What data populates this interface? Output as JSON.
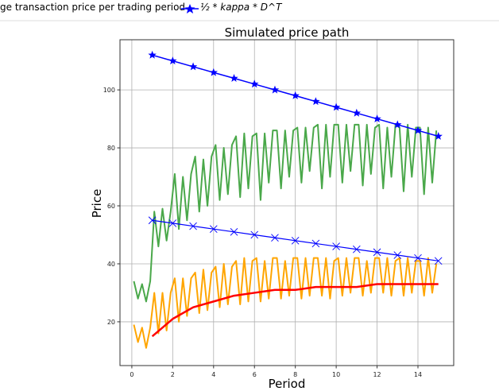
{
  "legend": {
    "entries": [
      {
        "label": "ge transaction price per trading period"
      },
      {
        "label": "½ * kappa * D^T",
        "color": "#0000ff",
        "marker": "star"
      }
    ]
  },
  "chart_data": {
    "type": "line",
    "title": "Simulated price path",
    "xlabel": "Period",
    "ylabel": "Price",
    "xlim": [
      -0.58,
      15.75
    ],
    "ylim": [
      4.9,
      117.3
    ],
    "xticks": [
      "0",
      "2",
      "4",
      "6",
      "8",
      "10",
      "12",
      "14"
    ],
    "yticks": [
      "20",
      "40",
      "60",
      "80",
      "100"
    ],
    "grid": true,
    "series": [
      {
        "name": "½ * kappa * D^T",
        "color": "#0000ff",
        "marker": "star",
        "x": [
          1,
          2,
          3,
          4,
          5,
          6,
          7,
          8,
          9,
          10,
          11,
          12,
          13,
          14,
          15
        ],
        "y": [
          112,
          110,
          108,
          106,
          104,
          102,
          100,
          98,
          96,
          94,
          92,
          90,
          88,
          86,
          84
        ]
      },
      {
        "color": "#0000ff",
        "marker": "x",
        "x": [
          1,
          2,
          3,
          4,
          5,
          6,
          7,
          8,
          9,
          10,
          11,
          12,
          13,
          14,
          15
        ],
        "y": [
          55,
          54,
          53,
          52,
          51,
          50,
          49,
          48,
          47,
          46,
          45,
          44,
          43,
          42,
          41
        ]
      },
      {
        "color": "#ff0000",
        "x": [
          1,
          2,
          3,
          4,
          5,
          6,
          7,
          8,
          9,
          10,
          11,
          12,
          13,
          14,
          15
        ],
        "y": [
          15,
          21,
          25,
          27,
          29,
          30,
          31,
          31,
          32,
          32,
          32,
          33,
          33,
          33,
          33
        ]
      },
      {
        "color": "#4aa84a",
        "x": [
          0.1,
          0.3,
          0.5,
          0.7,
          0.9,
          1.1,
          1.3,
          1.5,
          1.7,
          1.9,
          2.1,
          2.3,
          2.5,
          2.7,
          2.9,
          3.1,
          3.3,
          3.5,
          3.7,
          3.9,
          4.1,
          4.3,
          4.5,
          4.7,
          4.9,
          5.1,
          5.3,
          5.5,
          5.7,
          5.9,
          6.1,
          6.3,
          6.5,
          6.7,
          6.9,
          7.1,
          7.3,
          7.5,
          7.7,
          7.9,
          8.1,
          8.3,
          8.5,
          8.7,
          8.9,
          9.1,
          9.3,
          9.5,
          9.7,
          9.9,
          10.1,
          10.3,
          10.5,
          10.7,
          10.9,
          11.1,
          11.3,
          11.5,
          11.7,
          11.9,
          12.1,
          12.3,
          12.5,
          12.7,
          12.9,
          13.1,
          13.3,
          13.5,
          13.7,
          13.9,
          14.1,
          14.3,
          14.5,
          14.7,
          14.9
        ],
        "y": [
          34,
          28,
          33,
          27,
          34,
          58,
          46,
          59,
          48,
          58,
          71,
          52,
          70,
          55,
          71,
          77,
          58,
          76,
          60,
          77,
          81,
          62,
          80,
          64,
          81,
          84,
          63,
          85,
          66,
          84,
          85,
          62,
          85,
          68,
          86,
          86,
          66,
          86,
          70,
          86,
          87,
          68,
          87,
          72,
          87,
          88,
          66,
          88,
          70,
          88,
          88,
          68,
          88,
          72,
          88,
          88,
          67,
          88,
          71,
          87,
          88,
          66,
          87,
          70,
          88,
          87,
          65,
          88,
          70,
          87,
          87,
          64,
          87,
          68,
          86
        ]
      },
      {
        "color": "#ffa500",
        "x": [
          0.1,
          0.3,
          0.5,
          0.7,
          0.9,
          1.1,
          1.3,
          1.5,
          1.7,
          1.9,
          2.1,
          2.3,
          2.5,
          2.7,
          2.9,
          3.1,
          3.3,
          3.5,
          3.7,
          3.9,
          4.1,
          4.3,
          4.5,
          4.7,
          4.9,
          5.1,
          5.3,
          5.5,
          5.7,
          5.9,
          6.1,
          6.3,
          6.5,
          6.7,
          6.9,
          7.1,
          7.3,
          7.5,
          7.7,
          7.9,
          8.1,
          8.3,
          8.5,
          8.7,
          8.9,
          9.1,
          9.3,
          9.5,
          9.7,
          9.9,
          10.1,
          10.3,
          10.5,
          10.7,
          10.9,
          11.1,
          11.3,
          11.5,
          11.7,
          11.9,
          12.1,
          12.3,
          12.5,
          12.7,
          12.9,
          13.1,
          13.3,
          13.5,
          13.7,
          13.9,
          14.1,
          14.3,
          14.5,
          14.7,
          14.9
        ],
        "y": [
          19,
          13,
          18,
          11,
          18,
          30,
          16,
          30,
          17,
          30,
          35,
          20,
          35,
          22,
          35,
          37,
          23,
          38,
          24,
          37,
          39,
          25,
          40,
          26,
          39,
          41,
          26,
          42,
          27,
          41,
          42,
          27,
          41,
          28,
          42,
          42,
          28,
          41,
          29,
          42,
          42,
          28,
          42,
          29,
          42,
          42,
          29,
          42,
          28,
          41,
          42,
          29,
          42,
          30,
          42,
          42,
          29,
          41,
          30,
          42,
          42,
          30,
          42,
          29,
          41,
          42,
          29,
          42,
          30,
          41,
          41,
          29,
          42,
          30,
          40
        ]
      }
    ]
  }
}
